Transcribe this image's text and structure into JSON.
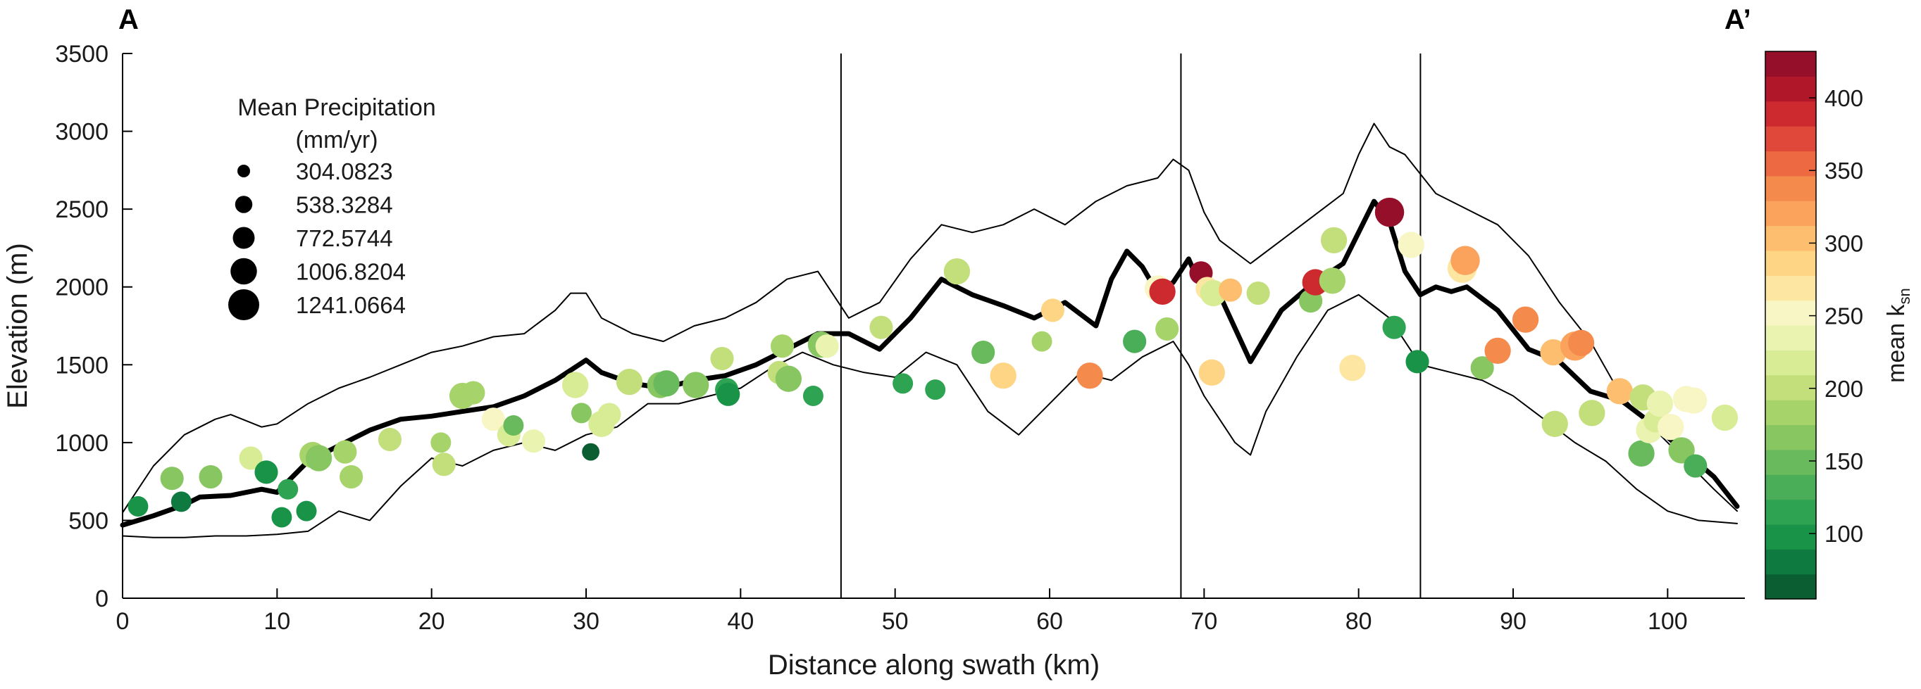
{
  "corner_labels": {
    "left": "A",
    "right": "A’"
  },
  "chart_data": {
    "type": "scatter",
    "xlabel": "Distance along swath (km)",
    "ylabel": "Elevation (m)",
    "xlim": [
      0,
      105
    ],
    "ylim": [
      0,
      3500
    ],
    "xticks": [
      "0",
      "10",
      "20",
      "30",
      "40",
      "50",
      "60",
      "70",
      "80",
      "90",
      "100"
    ],
    "yticks": [
      "0",
      "500",
      "1000",
      "1500",
      "2000",
      "2500",
      "3000",
      "3500"
    ],
    "vertical_lines_km": [
      46.5,
      68.5,
      84.0
    ],
    "size_legend": {
      "title": [
        "Mean Precipitation",
        "(mm/yr)"
      ],
      "entries": [
        "304.0823",
        "538.3284",
        "772.5744",
        "1006.8204",
        "1241.0664"
      ],
      "values": [
        304.0823,
        538.3284,
        772.5744,
        1006.8204,
        1241.0664
      ]
    },
    "colorbar": {
      "label": "mean k",
      "label_subscript": "sn",
      "range": [
        55,
        432
      ],
      "ticks": [
        "100",
        "150",
        "200",
        "250",
        "300",
        "350",
        "400"
      ],
      "tick_values": [
        100,
        150,
        200,
        250,
        300,
        350,
        400
      ],
      "colors": [
        "#0b5e32",
        "#0e7a3f",
        "#189347",
        "#2ea352",
        "#4aad57",
        "#69ba5c",
        "#88c662",
        "#a6d36a",
        "#c2df7c",
        "#d8eb95",
        "#ebf3b0",
        "#f8f6c5",
        "#fde6a1",
        "#fdd585",
        "#fdbf6f",
        "#fba35d",
        "#f58a4d",
        "#ec6941",
        "#e0493a",
        "#cc2a2f",
        "#b01829",
        "#960f2a"
      ]
    },
    "series": [
      {
        "name": "mean elevation",
        "x": [
          0,
          2,
          4,
          5,
          7,
          9,
          10,
          12,
          14,
          16,
          18,
          20,
          22,
          24,
          26,
          28,
          30,
          31,
          33,
          35,
          37,
          39,
          41,
          43,
          45,
          47,
          49,
          51,
          53,
          55,
          57,
          59,
          61,
          63,
          64,
          65,
          66,
          67,
          68,
          69,
          70,
          71,
          73,
          75,
          77,
          79,
          81,
          82,
          83,
          84,
          85,
          86,
          87,
          89,
          91,
          93,
          95,
          97,
          99,
          101,
          103,
          104.5
        ],
        "y": [
          470,
          530,
          600,
          650,
          660,
          700,
          680,
          880,
          980,
          1080,
          1150,
          1170,
          1200,
          1230,
          1300,
          1400,
          1530,
          1450,
          1380,
          1350,
          1400,
          1430,
          1500,
          1600,
          1700,
          1700,
          1600,
          1800,
          2050,
          1950,
          1880,
          1800,
          1900,
          1750,
          2050,
          2230,
          2130,
          1960,
          2030,
          2180,
          1950,
          1950,
          1520,
          1850,
          2020,
          2150,
          2550,
          2420,
          2100,
          1950,
          2000,
          1970,
          2000,
          1850,
          1600,
          1520,
          1330,
          1270,
          1120,
          950,
          780,
          590
        ]
      },
      {
        "name": "maximum elevation",
        "x": [
          0,
          1,
          2,
          4,
          6,
          7,
          9,
          10,
          12,
          14,
          16,
          18,
          20,
          22,
          24,
          26,
          28,
          29,
          30,
          31,
          33,
          35,
          37,
          39,
          41,
          43,
          45,
          47,
          49,
          51,
          53,
          55,
          57,
          59,
          61,
          63,
          65,
          67,
          68,
          69,
          70,
          71,
          73,
          75,
          77,
          79,
          80,
          81,
          82,
          83,
          85,
          87,
          89,
          91,
          93,
          95,
          97,
          99,
          101,
          103,
          104.5
        ],
        "y": [
          550,
          700,
          850,
          1050,
          1150,
          1180,
          1100,
          1120,
          1250,
          1350,
          1420,
          1500,
          1580,
          1620,
          1680,
          1700,
          1850,
          1960,
          1960,
          1800,
          1700,
          1650,
          1750,
          1800,
          1900,
          2050,
          2100,
          1800,
          1900,
          2180,
          2400,
          2350,
          2400,
          2500,
          2400,
          2550,
          2650,
          2700,
          2820,
          2750,
          2480,
          2300,
          2150,
          2300,
          2450,
          2600,
          2850,
          3050,
          2900,
          2850,
          2600,
          2500,
          2400,
          2200,
          1900,
          1650,
          1300,
          1100,
          900,
          700,
          560
        ]
      },
      {
        "name": "minimum elevation",
        "x": [
          0,
          2,
          4,
          6,
          8,
          10,
          12,
          14,
          16,
          18,
          20,
          22,
          24,
          26,
          28,
          30,
          32,
          34,
          36,
          38,
          40,
          42,
          44,
          46,
          48,
          50,
          52,
          54,
          56,
          58,
          60,
          62,
          64,
          66,
          68,
          69,
          70,
          71,
          72,
          73,
          74,
          76,
          78,
          80,
          82,
          84,
          86,
          88,
          90,
          92,
          94,
          96,
          98,
          100,
          102,
          104.5
        ],
        "y": [
          400,
          390,
          390,
          400,
          400,
          410,
          430,
          560,
          500,
          720,
          900,
          850,
          950,
          1000,
          950,
          1050,
          1100,
          1250,
          1250,
          1300,
          1350,
          1480,
          1580,
          1500,
          1450,
          1420,
          1580,
          1500,
          1200,
          1050,
          1250,
          1450,
          1400,
          1550,
          1650,
          1500,
          1300,
          1150,
          1000,
          920,
          1200,
          1550,
          1850,
          1950,
          1800,
          1500,
          1450,
          1400,
          1300,
          1150,
          1000,
          880,
          700,
          560,
          500,
          480
        ]
      },
      {
        "name": "basins",
        "points": [
          [
            1,
            590,
            700,
            100
          ],
          [
            3.2,
            770,
            850,
            165
          ],
          [
            3.8,
            620,
            700,
            85
          ],
          [
            5.7,
            780,
            850,
            170
          ],
          [
            8.3,
            900,
            850,
            215
          ],
          [
            9.3,
            810,
            850,
            90
          ],
          [
            10.3,
            520,
            700,
            95
          ],
          [
            10.7,
            700,
            700,
            120
          ],
          [
            11.9,
            560,
            700,
            105
          ],
          [
            12.3,
            920,
            1000,
            175
          ],
          [
            12.7,
            900,
            1000,
            170
          ],
          [
            14.4,
            940,
            850,
            180
          ],
          [
            14.8,
            780,
            850,
            190
          ],
          [
            17.3,
            1020,
            850,
            205
          ],
          [
            20.6,
            1000,
            700,
            190
          ],
          [
            20.8,
            860,
            850,
            205
          ],
          [
            22,
            1300,
            1000,
            185
          ],
          [
            22.7,
            1320,
            850,
            175
          ],
          [
            24,
            1150,
            850,
            250
          ],
          [
            25,
            1050,
            850,
            225
          ],
          [
            25.3,
            1110,
            700,
            150
          ],
          [
            26.6,
            1010,
            850,
            235
          ],
          [
            29.3,
            1370,
            1000,
            215
          ],
          [
            29.7,
            1190,
            700,
            160
          ],
          [
            30.3,
            940,
            550,
            55
          ],
          [
            31,
            1120,
            1000,
            220
          ],
          [
            31.5,
            1180,
            850,
            210
          ],
          [
            32.8,
            1390,
            1000,
            200
          ],
          [
            34.8,
            1370,
            1000,
            165
          ],
          [
            35.2,
            1380,
            1000,
            155
          ],
          [
            37.1,
            1370,
            1000,
            160
          ],
          [
            38.8,
            1540,
            850,
            205
          ],
          [
            39.1,
            1340,
            850,
            110
          ],
          [
            39.2,
            1310,
            850,
            95
          ],
          [
            42.5,
            1450,
            850,
            205
          ],
          [
            42.7,
            1620,
            850,
            190
          ],
          [
            43.1,
            1410,
            1000,
            170
          ],
          [
            44.7,
            1300,
            700,
            110
          ],
          [
            45.2,
            1630,
            1000,
            160
          ],
          [
            45.6,
            1620,
            850,
            235
          ],
          [
            49.1,
            1740,
            850,
            195
          ],
          [
            50.5,
            1380,
            700,
            115
          ],
          [
            52.6,
            1340,
            700,
            110
          ],
          [
            54,
            2100,
            1000,
            205
          ],
          [
            55.7,
            1580,
            850,
            145
          ],
          [
            57,
            1430,
            1000,
            285
          ],
          [
            59.5,
            1650,
            700,
            175
          ],
          [
            60.2,
            1850,
            850,
            285
          ],
          [
            62.6,
            1430,
            1000,
            330
          ],
          [
            65.5,
            1650,
            850,
            140
          ],
          [
            67,
            1990,
            1000,
            255
          ],
          [
            67.3,
            1970,
            1000,
            395
          ],
          [
            67.6,
            1730,
            850,
            185
          ],
          [
            69.8,
            2090,
            850,
            415
          ],
          [
            70.2,
            1990,
            850,
            275
          ],
          [
            70.5,
            1450,
            1000,
            285
          ],
          [
            70.6,
            1960,
            1000,
            210
          ],
          [
            71.7,
            1980,
            850,
            295
          ],
          [
            73.5,
            1960,
            850,
            195
          ],
          [
            76.9,
            1910,
            850,
            160
          ],
          [
            77.2,
            2030,
            1000,
            395
          ],
          [
            78.3,
            2040,
            1000,
            175
          ],
          [
            78.4,
            2300,
            1000,
            205
          ],
          [
            79.6,
            1480,
            1000,
            275
          ],
          [
            82,
            2480,
            1150,
            425
          ],
          [
            82.3,
            1740,
            850,
            110
          ],
          [
            83.4,
            2270,
            1000,
            250
          ],
          [
            83.8,
            1520,
            850,
            100
          ],
          [
            86.7,
            2120,
            1150,
            275
          ],
          [
            86.9,
            2170,
            1150,
            325
          ],
          [
            88,
            1480,
            850,
            165
          ],
          [
            89,
            1590,
            1000,
            345
          ],
          [
            90.8,
            1790,
            1000,
            340
          ],
          [
            92.6,
            1580,
            1000,
            305
          ],
          [
            92.7,
            1120,
            1000,
            205
          ],
          [
            94,
            1620,
            1150,
            325
          ],
          [
            94.4,
            1640,
            1000,
            335
          ],
          [
            95.1,
            1190,
            1000,
            205
          ],
          [
            96.9,
            1330,
            1000,
            305
          ],
          [
            98.3,
            930,
            1000,
            150
          ],
          [
            98.4,
            1290,
            1000,
            195
          ],
          [
            98.8,
            1080,
            1000,
            235
          ],
          [
            99.2,
            1140,
            850,
            225
          ],
          [
            99.5,
            1250,
            1000,
            240
          ],
          [
            100.2,
            1100,
            1000,
            255
          ],
          [
            100.9,
            950,
            1000,
            160
          ],
          [
            101.2,
            1280,
            1000,
            250
          ],
          [
            101.7,
            1270,
            1000,
            255
          ],
          [
            101.8,
            850,
            850,
            125
          ],
          [
            103.7,
            1160,
            1000,
            215
          ]
        ]
      }
    ]
  }
}
